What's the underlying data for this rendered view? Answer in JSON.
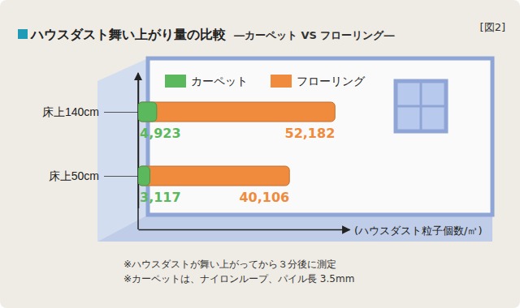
{
  "chart_data": {
    "type": "bar",
    "orientation": "horizontal",
    "stacked": false,
    "title": "ハウスダスト舞い上がり量の比較",
    "subtitle": "―カーペット VS フローリング―",
    "xlabel": "(ハウスダスト粒子個数/㎥)",
    "annotations": [
      "[図2]",
      "※ハウスダストが舞い上がってから３分後に測定",
      "※カーペットは、ナイロンループ、パイル長 3.5mm"
    ],
    "categories": [
      "床上140cm",
      "床上50cm"
    ],
    "series": [
      {
        "name": "カーペット",
        "color": "#5cb85c",
        "values": [
          4923,
          3117
        ],
        "value_labels": [
          "4,923",
          "3,117"
        ]
      },
      {
        "name": "フローリング",
        "color": "#f08a3c",
        "values": [
          52182,
          40106
        ],
        "value_labels": [
          "52,182",
          "40,106"
        ]
      }
    ],
    "xlim": [
      0,
      56000
    ],
    "data_labels": true,
    "tick_labels": "y",
    "legend": "top"
  }
}
